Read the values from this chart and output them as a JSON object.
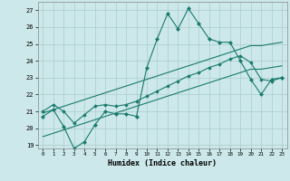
{
  "xlabel": "Humidex (Indice chaleur)",
  "bg_color": "#cce8ea",
  "grid_color": "#aacccc",
  "line_color": "#1a7a6e",
  "xlim": [
    -0.5,
    23.5
  ],
  "ylim": [
    18.8,
    27.5
  ],
  "yticks": [
    19,
    20,
    21,
    22,
    23,
    24,
    25,
    26,
    27
  ],
  "xticks": [
    0,
    1,
    2,
    3,
    4,
    5,
    6,
    7,
    8,
    9,
    10,
    11,
    12,
    13,
    14,
    15,
    16,
    17,
    18,
    19,
    20,
    21,
    22,
    23
  ],
  "series1_x": [
    0,
    1,
    2,
    3,
    4,
    5,
    6,
    7,
    8,
    9,
    10,
    11,
    12,
    13,
    14,
    15,
    16,
    17,
    18,
    19,
    20,
    21,
    22,
    23
  ],
  "series1_y": [
    20.7,
    21.1,
    20.1,
    18.8,
    19.2,
    20.2,
    21.0,
    20.85,
    20.85,
    20.7,
    23.6,
    25.3,
    26.8,
    25.9,
    27.1,
    26.2,
    25.3,
    25.1,
    25.1,
    24.0,
    22.9,
    22.0,
    22.9,
    23.0
  ],
  "series2_x": [
    0,
    1,
    2,
    3,
    4,
    5,
    6,
    7,
    8,
    9,
    10,
    11,
    12,
    13,
    14,
    15,
    16,
    17,
    18,
    19,
    20,
    21,
    22,
    23
  ],
  "series2_y": [
    21.0,
    21.4,
    21.0,
    20.3,
    20.8,
    21.3,
    21.4,
    21.3,
    21.4,
    21.6,
    21.9,
    22.2,
    22.5,
    22.8,
    23.1,
    23.3,
    23.6,
    23.8,
    24.1,
    24.3,
    23.9,
    22.9,
    22.8,
    23.0
  ],
  "series3_x": [
    0,
    1,
    2,
    3,
    4,
    5,
    6,
    7,
    8,
    9,
    10,
    11,
    12,
    13,
    14,
    15,
    16,
    17,
    18,
    19,
    20,
    21,
    22,
    23
  ],
  "series3_y": [
    20.9,
    21.1,
    21.3,
    21.5,
    21.7,
    21.9,
    22.1,
    22.3,
    22.5,
    22.7,
    22.9,
    23.1,
    23.3,
    23.5,
    23.7,
    23.9,
    24.1,
    24.3,
    24.5,
    24.7,
    24.9,
    24.9,
    25.0,
    25.1
  ],
  "series4_x": [
    0,
    1,
    2,
    3,
    4,
    5,
    6,
    7,
    8,
    9,
    10,
    11,
    12,
    13,
    14,
    15,
    16,
    17,
    18,
    19,
    20,
    21,
    22,
    23
  ],
  "series4_y": [
    19.5,
    19.7,
    19.9,
    20.1,
    20.3,
    20.5,
    20.7,
    20.9,
    21.1,
    21.3,
    21.5,
    21.7,
    21.9,
    22.1,
    22.3,
    22.5,
    22.7,
    22.9,
    23.1,
    23.3,
    23.5,
    23.5,
    23.6,
    23.7
  ]
}
